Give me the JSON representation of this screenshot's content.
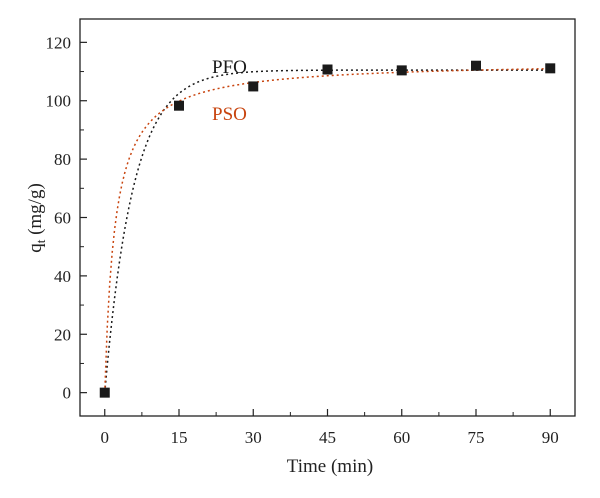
{
  "chart_data": {
    "type": "scatter",
    "xlabel": "Time (min)",
    "ylabel_main": "q",
    "ylabel_sub": "t",
    "ylabel_unit": " (mg/g)",
    "xlim": [
      -5,
      95
    ],
    "ylim": [
      -8,
      128
    ],
    "xticks": [
      0,
      15,
      30,
      45,
      60,
      75,
      90
    ],
    "yticks": [
      0,
      20,
      40,
      60,
      80,
      100,
      120
    ],
    "grid": false,
    "points": {
      "x": [
        0,
        15,
        30,
        45,
        60,
        75,
        90
      ],
      "y": [
        0,
        98.3,
        104.9,
        110.7,
        110.4,
        112.0,
        111.1
      ],
      "marker": "square",
      "color": "#1a1a1a"
    },
    "series": [
      {
        "name": "PFO",
        "color": "#1a1a1a",
        "style": "dotted",
        "qe": 110.5,
        "k": 0.175
      },
      {
        "name": "PSO",
        "color": "#c8440e",
        "style": "dotted",
        "qe": 113.5,
        "k": 0.0043
      }
    ]
  }
}
